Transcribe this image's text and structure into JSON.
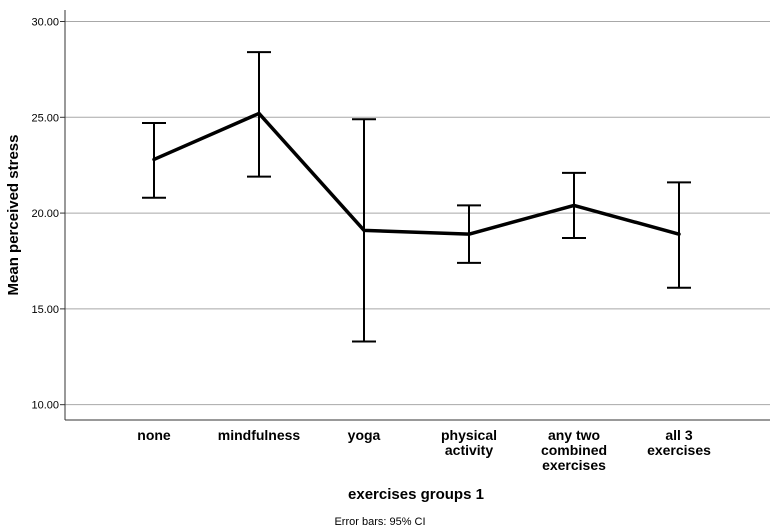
{
  "chart_data": {
    "type": "line",
    "title": "",
    "xlabel": "exercises groups 1",
    "ylabel": "Mean perceived stress",
    "ylim": [
      9.2,
      30.6
    ],
    "yticks": [
      "10.00",
      "15.00",
      "20.00",
      "25.00",
      "30.00"
    ],
    "ytick_values": [
      10,
      15,
      20,
      25,
      30
    ],
    "grid": true,
    "categories": [
      [
        "none"
      ],
      [
        "mindfulness"
      ],
      [
        "yoga"
      ],
      [
        "physical",
        "activity"
      ],
      [
        "any two",
        "combined",
        "exercises"
      ],
      [
        "all 3",
        "exercises"
      ]
    ],
    "series": [
      {
        "name": "Mean perceived stress",
        "values": [
          22.8,
          25.2,
          19.1,
          18.9,
          20.4,
          18.9
        ],
        "ci_lower": [
          20.8,
          21.9,
          13.3,
          17.4,
          18.7,
          16.1
        ],
        "ci_upper": [
          24.7,
          28.4,
          24.9,
          20.4,
          22.1,
          21.6
        ]
      }
    ],
    "footnote": "Error bars: 95% CI",
    "colors": {
      "line": "#000000",
      "grid": "#a8a8a8",
      "axis": "#333333"
    }
  }
}
